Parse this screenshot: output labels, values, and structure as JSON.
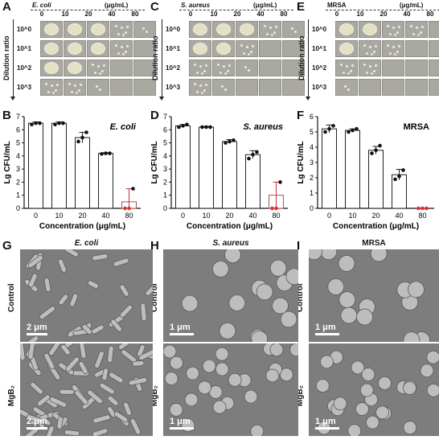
{
  "panel_labels": {
    "A": "A",
    "B": "B",
    "C": "C",
    "D": "D",
    "E": "E",
    "F": "F",
    "G": "G",
    "H": "H",
    "I": "I"
  },
  "plates": {
    "ylabel": "Dilution ratio",
    "units": "(μg/mL)",
    "concentrations": [
      "0",
      "10",
      "20",
      "40",
      "80"
    ],
    "rows": [
      "10^0",
      "10^1",
      "10^2",
      "10^3"
    ],
    "panels": [
      {
        "title": "E. coli",
        "grid": [
          [
            "lawn",
            "lawn",
            "lawn",
            "col",
            "few"
          ],
          [
            "lawn",
            "lawn",
            "lawn",
            "col",
            "empty"
          ],
          [
            "lawn",
            "lawn",
            "col",
            "empty",
            "empty"
          ],
          [
            "col",
            "col",
            "few",
            "empty",
            "empty"
          ]
        ]
      },
      {
        "title": "S. aureus",
        "grid": [
          [
            "lawn",
            "lawn",
            "lawn",
            "col",
            "few"
          ],
          [
            "lawn",
            "lawn",
            "col",
            "empty",
            "empty"
          ],
          [
            "col",
            "col",
            "few",
            "empty",
            "empty"
          ],
          [
            "col",
            "few",
            "empty",
            "empty",
            "empty"
          ]
        ]
      },
      {
        "title": "MRSA",
        "grid": [
          [
            "lawn",
            "lawn",
            "col",
            "col",
            "empty"
          ],
          [
            "lawn",
            "col",
            "col",
            "empty",
            "empty"
          ],
          [
            "col",
            "col",
            "empty",
            "empty",
            "empty"
          ],
          [
            "few",
            "empty",
            "empty",
            "empty",
            "empty"
          ]
        ]
      }
    ]
  },
  "chart_data": [
    {
      "type": "bar",
      "title": "E. coli",
      "categories": [
        "0",
        "10",
        "20",
        "40",
        "80"
      ],
      "values": [
        6.5,
        6.5,
        5.4,
        4.2,
        0.5
      ],
      "errors": [
        0.1,
        0.1,
        0.4,
        0.05,
        1.0
      ],
      "points": [
        [
          6.4,
          6.5,
          6.5
        ],
        [
          6.4,
          6.5,
          6.5
        ],
        [
          5.1,
          5.4,
          5.8
        ],
        [
          4.15,
          4.2,
          4.2
        ],
        [
          0,
          0,
          1.5
        ]
      ],
      "xlabel": "Concentration (μg/mL)",
      "ylabel": "Lg CFU/mL",
      "ylim": [
        0,
        7
      ],
      "yticks": [
        0,
        1,
        2,
        3,
        4,
        5,
        6,
        7
      ],
      "title_italic": true
    },
    {
      "type": "bar",
      "title": "S. aureus",
      "categories": [
        "0",
        "10",
        "20",
        "40",
        "80"
      ],
      "values": [
        6.3,
        6.2,
        5.1,
        4.1,
        1.0
      ],
      "errors": [
        0.1,
        0.05,
        0.15,
        0.3,
        1.0
      ],
      "points": [
        [
          6.2,
          6.3,
          6.4
        ],
        [
          6.2,
          6.2,
          6.2
        ],
        [
          5.0,
          5.1,
          5.2
        ],
        [
          3.8,
          4.1,
          4.3
        ],
        [
          0,
          0,
          2.0
        ]
      ],
      "xlabel": "Concentration (μg/mL)",
      "ylabel": "Lg CFU/mL",
      "ylim": [
        0,
        7
      ],
      "yticks": [
        0,
        1,
        2,
        3,
        4,
        5,
        6,
        7
      ],
      "title_italic": true
    },
    {
      "type": "bar",
      "title": "MRSA",
      "categories": [
        "0",
        "10",
        "20",
        "40",
        "80"
      ],
      "values": [
        5.2,
        5.1,
        3.8,
        2.2,
        0.0
      ],
      "errors": [
        0.25,
        0.1,
        0.25,
        0.35,
        0.0
      ],
      "points": [
        [
          5.0,
          5.2,
          5.4
        ],
        [
          5.0,
          5.1,
          5.2
        ],
        [
          3.6,
          3.8,
          4.1
        ],
        [
          1.9,
          2.1,
          2.5
        ],
        [
          0,
          0,
          0
        ]
      ],
      "xlabel": "Concentration (μg/mL)",
      "ylabel": "Lg CFU/mL",
      "ylim": [
        0,
        6
      ],
      "yticks": [
        0,
        1,
        2,
        3,
        4,
        5,
        6
      ],
      "title_italic": false
    }
  ],
  "sem": {
    "titles": [
      "E. coli",
      "S. aureus",
      "MRSA"
    ],
    "titles_italic": [
      true,
      true,
      false
    ],
    "row_labels": [
      "Control",
      "MgB₂"
    ],
    "scale_labels": [
      [
        "2 μm",
        "1 μm",
        "1 μm"
      ],
      [
        "2 μm",
        "1 μm",
        "1 μm"
      ]
    ]
  },
  "colors": {
    "bar_fill": "#ffffff",
    "bar_stroke": "#222222",
    "point": "#111111",
    "zero_point": "#e03030",
    "error": "#222222",
    "zero_error": "#cc3030",
    "sem_bg": "#7d7d7d"
  }
}
